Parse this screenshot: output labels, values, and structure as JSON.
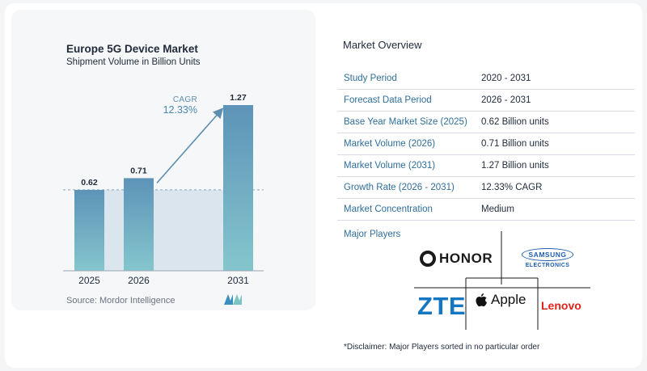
{
  "chart": {
    "title": "Europe 5G Device Market",
    "subtitle": "Shipment Volume in Billion Units",
    "cagr_label": "CAGR",
    "cagr_value": "12.33%",
    "source": "Source:  Mordor Intelligence"
  },
  "chart_data": {
    "type": "bar",
    "title": "Europe 5G Device Market",
    "subtitle": "Shipment Volume in Billion Units",
    "categories": [
      "2025",
      "2026",
      "2031"
    ],
    "values": [
      0.62,
      0.71,
      1.27
    ],
    "data_labels": [
      "0.62",
      "0.71",
      "1.27"
    ],
    "ylim": [
      0,
      1.27
    ],
    "annotation": "CAGR 12.33%",
    "grid": false,
    "legend": "none",
    "colors": {
      "bar_top": "#5d93b8",
      "bar_bottom": "#84c6cd",
      "band": "#dae5ee",
      "arrow": "#5d8fb0"
    }
  },
  "overview": {
    "title": "Market Overview",
    "rows": [
      {
        "label": "Study Period",
        "value": "2020 - 2031"
      },
      {
        "label": "Forecast Data Period",
        "value": "2026 - 2031"
      },
      {
        "label": "Base Year Market Size (2025)",
        "value": "0.62 Billion units"
      },
      {
        "label": "Market Volume (2026)",
        "value": "0.71 Billion units"
      },
      {
        "label": "Market Volume (2031)",
        "value": "1.27 Billion units"
      },
      {
        "label": "Growth Rate (2026 - 2031)",
        "value": "12.33% CAGR"
      },
      {
        "label": "Market Concentration",
        "value": "Medium"
      }
    ]
  },
  "players": {
    "title": "Major Players",
    "honor": "HONOR",
    "samsung_top": "SAMSUNG",
    "samsung_bottom": "ELECTRONICS",
    "zte": "ZTE",
    "apple": "Apple",
    "lenovo": "Lenovo"
  },
  "disclaimer": "*Disclaimer: Major Players sorted in no particular order"
}
